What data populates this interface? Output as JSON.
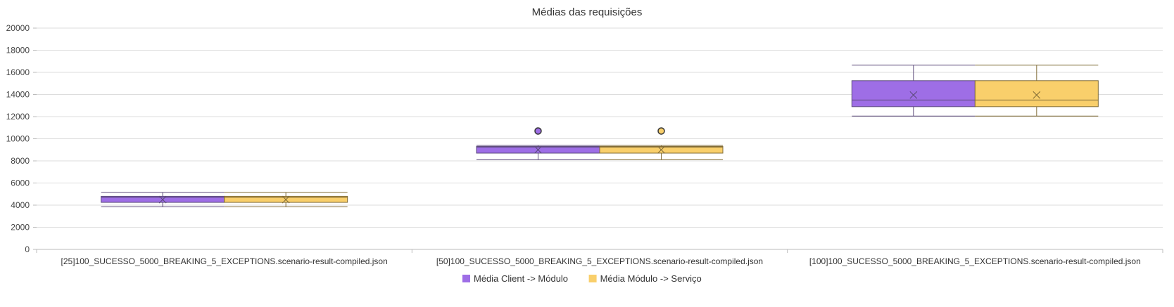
{
  "chart_data": {
    "type": "boxplot",
    "title": "Médias das requisições",
    "xlabel": "",
    "ylabel": "",
    "ylim": [
      0,
      20000
    ],
    "yticks": [
      0,
      2000,
      4000,
      6000,
      8000,
      10000,
      12000,
      14000,
      16000,
      18000,
      20000
    ],
    "grid": true,
    "legend_position": "bottom",
    "categories": [
      "[25]100_SUCESSO_5000_BREAKING_5_EXCEPTIONS.scenario-result-compiled.json",
      "[50]100_SUCESSO_5000_BREAKING_5_EXCEPTIONS.scenario-result-compiled.json",
      "[100]100_SUCESSO_5000_BREAKING_5_EXCEPTIONS.scenario-result-compiled.json"
    ],
    "series": [
      {
        "name": "Média Client -> Módulo",
        "color": "#9e6ee6",
        "boxes": [
          {
            "min": 3850,
            "q1": 4250,
            "median": 4700,
            "q3": 4800,
            "max": 5150,
            "mean": 4500,
            "outliers": []
          },
          {
            "min": 8100,
            "q1": 8700,
            "median": 9250,
            "q3": 9300,
            "max": 9400,
            "mean": 9000,
            "outliers": [
              10700
            ]
          },
          {
            "min": 12050,
            "q1": 12900,
            "median": 13500,
            "q3": 15250,
            "max": 16650,
            "mean": 13950,
            "outliers": []
          }
        ]
      },
      {
        "name": "Média Módulo -> Serviço",
        "color": "#f9cf6b",
        "boxes": [
          {
            "min": 3850,
            "q1": 4250,
            "median": 4700,
            "q3": 4800,
            "max": 5150,
            "mean": 4500,
            "outliers": []
          },
          {
            "min": 8100,
            "q1": 8700,
            "median": 9250,
            "q3": 9300,
            "max": 9400,
            "mean": 9000,
            "outliers": [
              10700
            ]
          },
          {
            "min": 12050,
            "q1": 12900,
            "median": 13500,
            "q3": 15250,
            "max": 16650,
            "mean": 13950,
            "outliers": []
          }
        ]
      }
    ]
  }
}
